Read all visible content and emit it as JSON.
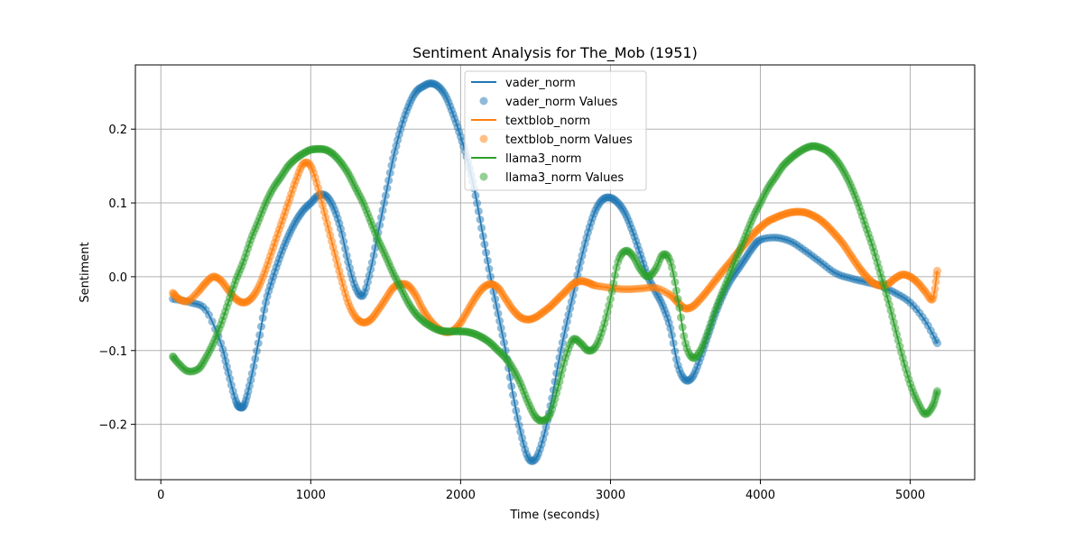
{
  "chart_data": {
    "type": "line",
    "title": "Sentiment Analysis for The_Mob (1951)",
    "xlabel": "Time (seconds)",
    "ylabel": "Sentiment",
    "xlim": [
      -170,
      5430
    ],
    "ylim": [
      -0.275,
      0.287
    ],
    "xticks": [
      0,
      1000,
      2000,
      3000,
      4000,
      5000
    ],
    "yticks": [
      -0.2,
      -0.1,
      0.0,
      0.1,
      0.2
    ],
    "xtick_labels": [
      "0",
      "1000",
      "2000",
      "3000",
      "4000",
      "5000"
    ],
    "ytick_labels": [
      "−0.2",
      "−0.1",
      "0.0",
      "0.1",
      "0.2"
    ],
    "grid": true,
    "legend_position": "top-center",
    "legend": [
      "vader_norm",
      "vader_norm Values",
      "textblob_norm",
      "textblob_norm Values",
      "llama3_norm",
      "llama3_norm Values"
    ],
    "series": [
      {
        "name": "vader_norm",
        "color": "#1f77b4",
        "x": [
          80,
          200,
          300,
          400,
          450,
          500,
          530,
          560,
          600,
          650,
          700,
          750,
          800,
          850,
          900,
          950,
          1000,
          1050,
          1100,
          1150,
          1200,
          1250,
          1300,
          1350,
          1400,
          1450,
          1500,
          1550,
          1600,
          1650,
          1700,
          1750,
          1800,
          1850,
          1900,
          1950,
          2000,
          2050,
          2100,
          2150,
          2200,
          2250,
          2300,
          2350,
          2400,
          2450,
          2500,
          2550,
          2600,
          2650,
          2700,
          2750,
          2800,
          2850,
          2900,
          2950,
          3000,
          3050,
          3100,
          3150,
          3200,
          3250,
          3300,
          3350,
          3400,
          3450,
          3500,
          3550,
          3600,
          3650,
          3700,
          3750,
          3800,
          3850,
          3900,
          3950,
          4000,
          4100,
          4200,
          4300,
          4400,
          4500,
          4600,
          4700,
          4800,
          4900,
          5000,
          5100,
          5180
        ],
        "y": [
          -0.03,
          -0.035,
          -0.045,
          -0.09,
          -0.13,
          -0.168,
          -0.177,
          -0.172,
          -0.14,
          -0.09,
          -0.035,
          0.0,
          0.03,
          0.055,
          0.075,
          0.09,
          0.1,
          0.11,
          0.11,
          0.095,
          0.065,
          0.02,
          -0.015,
          -0.025,
          0.01,
          0.06,
          0.11,
          0.16,
          0.2,
          0.23,
          0.25,
          0.258,
          0.262,
          0.258,
          0.245,
          0.22,
          0.19,
          0.155,
          0.11,
          0.055,
          0.0,
          -0.05,
          -0.1,
          -0.16,
          -0.21,
          -0.245,
          -0.247,
          -0.22,
          -0.175,
          -0.12,
          -0.07,
          -0.025,
          0.02,
          0.06,
          0.09,
          0.105,
          0.107,
          0.1,
          0.085,
          0.06,
          0.03,
          0.0,
          -0.02,
          -0.04,
          -0.07,
          -0.12,
          -0.14,
          -0.135,
          -0.11,
          -0.08,
          -0.05,
          -0.025,
          -0.005,
          0.01,
          0.025,
          0.04,
          0.05,
          0.053,
          0.048,
          0.035,
          0.02,
          0.005,
          -0.002,
          -0.007,
          -0.012,
          -0.022,
          -0.035,
          -0.06,
          -0.09
        ]
      },
      {
        "name": "textblob_norm",
        "color": "#ff7f0e",
        "x": [
          80,
          120,
          180,
          250,
          300,
          350,
          400,
          450,
          500,
          550,
          600,
          650,
          700,
          750,
          800,
          850,
          900,
          950,
          1000,
          1050,
          1100,
          1150,
          1200,
          1250,
          1300,
          1350,
          1400,
          1450,
          1500,
          1550,
          1600,
          1650,
          1700,
          1750,
          1800,
          1850,
          1900,
          1950,
          2000,
          2050,
          2100,
          2150,
          2200,
          2250,
          2300,
          2350,
          2400,
          2450,
          2500,
          2550,
          2600,
          2650,
          2700,
          2750,
          2800,
          2850,
          2900,
          3000,
          3100,
          3200,
          3300,
          3400,
          3450,
          3500,
          3550,
          3600,
          3650,
          3700,
          3750,
          3800,
          3850,
          3900,
          3950,
          4000,
          4050,
          4100,
          4150,
          4200,
          4250,
          4300,
          4350,
          4400,
          4450,
          4500,
          4550,
          4600,
          4650,
          4700,
          4750,
          4800,
          4850,
          4900,
          4950,
          5000,
          5050,
          5100,
          5150,
          5180
        ],
        "y": [
          -0.022,
          -0.03,
          -0.033,
          -0.02,
          -0.008,
          0.0,
          -0.005,
          -0.018,
          -0.03,
          -0.035,
          -0.03,
          -0.015,
          0.01,
          0.04,
          0.07,
          0.1,
          0.13,
          0.153,
          0.15,
          0.12,
          0.08,
          0.04,
          0.0,
          -0.035,
          -0.055,
          -0.062,
          -0.058,
          -0.045,
          -0.03,
          -0.015,
          -0.01,
          -0.012,
          -0.025,
          -0.045,
          -0.06,
          -0.07,
          -0.075,
          -0.073,
          -0.062,
          -0.045,
          -0.028,
          -0.015,
          -0.01,
          -0.015,
          -0.03,
          -0.045,
          -0.055,
          -0.058,
          -0.055,
          -0.048,
          -0.04,
          -0.03,
          -0.02,
          -0.01,
          -0.006,
          -0.008,
          -0.012,
          -0.015,
          -0.017,
          -0.016,
          -0.015,
          -0.025,
          -0.035,
          -0.043,
          -0.04,
          -0.03,
          -0.018,
          -0.005,
          0.008,
          0.02,
          0.033,
          0.045,
          0.057,
          0.067,
          0.075,
          0.08,
          0.084,
          0.087,
          0.088,
          0.087,
          0.083,
          0.077,
          0.068,
          0.057,
          0.045,
          0.03,
          0.015,
          0.002,
          -0.008,
          -0.012,
          -0.01,
          -0.002,
          0.003,
          0.0,
          -0.008,
          -0.02,
          -0.03,
          0.008
        ]
      },
      {
        "name": "llama3_norm",
        "color": "#2ca02c",
        "x": [
          80,
          120,
          180,
          250,
          300,
          350,
          400,
          450,
          500,
          550,
          600,
          650,
          700,
          750,
          800,
          850,
          900,
          950,
          1000,
          1050,
          1100,
          1150,
          1200,
          1250,
          1300,
          1350,
          1400,
          1450,
          1500,
          1550,
          1600,
          1650,
          1700,
          1750,
          1800,
          1850,
          1900,
          1950,
          2000,
          2050,
          2100,
          2150,
          2200,
          2250,
          2300,
          2350,
          2400,
          2450,
          2500,
          2550,
          2600,
          2650,
          2700,
          2750,
          2800,
          2850,
          2900,
          2950,
          3000,
          3050,
          3100,
          3150,
          3200,
          3250,
          3300,
          3350,
          3400,
          3450,
          3500,
          3550,
          3600,
          3650,
          3700,
          3750,
          3800,
          3850,
          3900,
          3950,
          4000,
          4050,
          4100,
          4150,
          4200,
          4250,
          4300,
          4350,
          4400,
          4450,
          4500,
          4550,
          4600,
          4650,
          4700,
          4750,
          4800,
          4850,
          4900,
          4950,
          5000,
          5050,
          5100,
          5150,
          5180
        ],
        "y": [
          -0.108,
          -0.118,
          -0.128,
          -0.125,
          -0.11,
          -0.09,
          -0.065,
          -0.035,
          -0.005,
          0.02,
          0.05,
          0.075,
          0.1,
          0.12,
          0.135,
          0.15,
          0.16,
          0.167,
          0.172,
          0.173,
          0.172,
          0.166,
          0.155,
          0.14,
          0.12,
          0.1,
          0.075,
          0.05,
          0.028,
          0.005,
          -0.015,
          -0.035,
          -0.05,
          -0.06,
          -0.067,
          -0.072,
          -0.074,
          -0.074,
          -0.074,
          -0.075,
          -0.078,
          -0.083,
          -0.09,
          -0.1,
          -0.11,
          -0.125,
          -0.145,
          -0.17,
          -0.19,
          -0.195,
          -0.185,
          -0.15,
          -0.11,
          -0.085,
          -0.09,
          -0.1,
          -0.095,
          -0.07,
          -0.03,
          0.02,
          0.035,
          0.028,
          0.01,
          0.0,
          0.01,
          0.03,
          0.02,
          -0.03,
          -0.09,
          -0.11,
          -0.1,
          -0.075,
          -0.045,
          -0.02,
          0.005,
          0.03,
          0.055,
          0.08,
          0.1,
          0.12,
          0.135,
          0.15,
          0.16,
          0.168,
          0.174,
          0.177,
          0.175,
          0.17,
          0.16,
          0.145,
          0.125,
          0.1,
          0.07,
          0.04,
          0.005,
          -0.03,
          -0.07,
          -0.11,
          -0.145,
          -0.17,
          -0.186,
          -0.175,
          -0.155
        ]
      }
    ]
  }
}
